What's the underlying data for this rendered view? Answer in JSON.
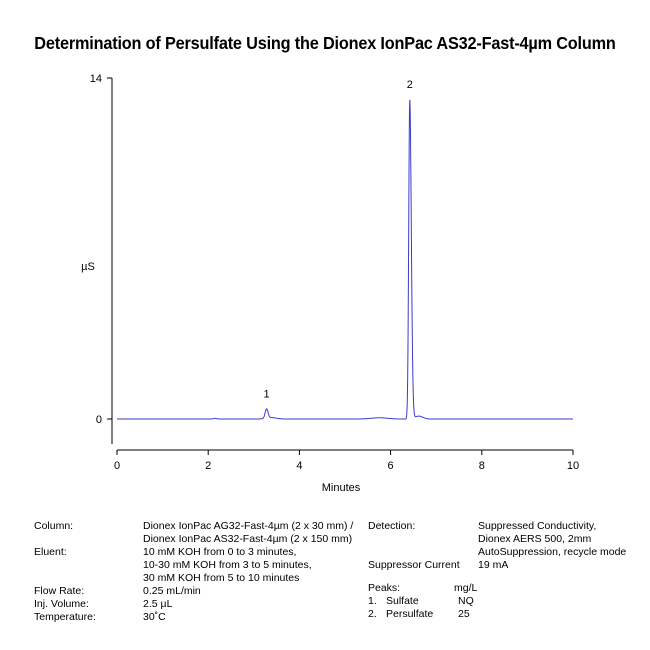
{
  "chart_data": {
    "type": "line",
    "title": "Determination of Persulfate Using the Dionex IonPac AS32-Fast-4µm Column",
    "xlabel": "Minutes",
    "ylabel": "µS",
    "xlim": [
      0,
      10
    ],
    "ylim": [
      -1,
      14
    ],
    "x_ticks": [
      "0",
      "2",
      "4",
      "6",
      "8",
      "10"
    ],
    "y_ticks": [
      "0",
      "14"
    ],
    "line_color": "#3b3bcc",
    "grid": false,
    "legend": "none",
    "baseline": 0,
    "peaks": [
      {
        "label": "1",
        "time": 3.28,
        "height": 0.38
      },
      {
        "label": "2",
        "time": 6.42,
        "height": 13.1
      }
    ]
  },
  "conditions": {
    "left": [
      {
        "label": "Column:",
        "values": [
          "Dionex IonPac AG32-Fast-4µm (2 x 30 mm) /",
          "Dionex IonPac AS32-Fast-4µm (2 x 150 mm)"
        ]
      },
      {
        "label": "Eluent:",
        "values": [
          "10 mM KOH from 0 to 3 minutes,",
          "10-30 mM KOH from 3 to 5 minutes,",
          "30 mM KOH from 5 to 10 minutes"
        ]
      },
      {
        "label": "Flow Rate:",
        "values": [
          "0.25 mL/min"
        ]
      },
      {
        "label": "Inj. Volume:",
        "values": [
          "2.5 µL"
        ]
      },
      {
        "label": "Temperature:",
        "values": [
          "30˚C"
        ]
      }
    ],
    "right": [
      {
        "label": "Detection:",
        "values": [
          "Suppressed Conductivity,",
          "Dionex AERS 500, 2mm",
          "AutoSuppression, recycle mode"
        ]
      },
      {
        "label": "Suppressor Current",
        "values": [
          "19 mA"
        ]
      }
    ],
    "peaks_table": {
      "header_label": "Peaks:",
      "header_unit": "mg/L",
      "rows": [
        {
          "num": "1.",
          "name": "Sulfate",
          "value": "NQ"
        },
        {
          "num": "2.",
          "name": "Persulfate",
          "value": "25"
        }
      ]
    }
  }
}
